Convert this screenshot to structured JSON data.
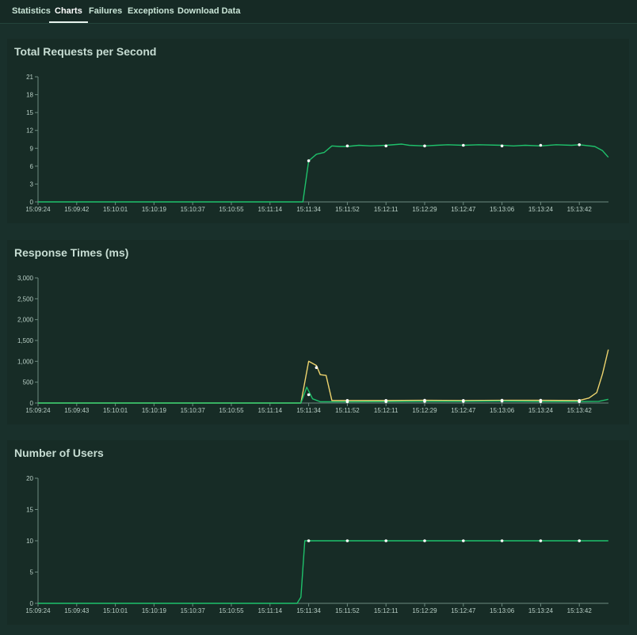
{
  "nav": {
    "tabs": [
      {
        "label": "Statistics",
        "active": false
      },
      {
        "label": "Charts",
        "active": true
      },
      {
        "label": "Failures",
        "active": false
      },
      {
        "label": "Exceptions",
        "active": false
      },
      {
        "label": "Download Data",
        "active": false
      }
    ]
  },
  "colors": {
    "background": "#19302b",
    "panel": "#172c26",
    "green_line": "#1fc16b",
    "yellow_line": "#eed46e",
    "axis": "#6d8a80"
  },
  "chart_data": [
    {
      "type": "line",
      "title": "Total Requests per Second",
      "ylim": [
        0,
        21
      ],
      "yticks": [
        "0",
        "3",
        "6",
        "9",
        "12",
        "15",
        "18",
        "21"
      ],
      "x_tick_labels": [
        "15:09:24",
        "15:09:42",
        "15:10:01",
        "15:10:19",
        "15:10:37",
        "15:10:55",
        "15:11:14",
        "15:11:34",
        "15:11:52",
        "15:12:11",
        "15:12:29",
        "15:12:47",
        "15:13:06",
        "15:13:24",
        "15:13:42"
      ],
      "grid": false,
      "series": [
        {
          "color": "#1fc16b",
          "points": [
            [
              0,
              0
            ],
            [
              6.75,
              0
            ],
            [
              6.85,
              0
            ],
            [
              7.0,
              6.9
            ],
            [
              7.2,
              8.0
            ],
            [
              7.4,
              8.3
            ],
            [
              7.6,
              9.4
            ],
            [
              7.8,
              9.3
            ],
            [
              8.0,
              9.3
            ],
            [
              8.3,
              9.5
            ],
            [
              8.6,
              9.4
            ],
            [
              9.0,
              9.5
            ],
            [
              9.4,
              9.7
            ],
            [
              9.6,
              9.5
            ],
            [
              10.0,
              9.4
            ],
            [
              10.3,
              9.5
            ],
            [
              10.6,
              9.6
            ],
            [
              11.0,
              9.5
            ],
            [
              11.4,
              9.6
            ],
            [
              12.0,
              9.5
            ],
            [
              12.3,
              9.4
            ],
            [
              12.6,
              9.5
            ],
            [
              13.0,
              9.4
            ],
            [
              13.4,
              9.6
            ],
            [
              13.8,
              9.5
            ],
            [
              14.0,
              9.6
            ],
            [
              14.4,
              9.3
            ],
            [
              14.6,
              8.6
            ],
            [
              14.75,
              7.5
            ]
          ],
          "markers": [
            [
              7.0,
              6.9
            ],
            [
              8.0,
              9.4
            ],
            [
              9.0,
              9.4
            ],
            [
              10.0,
              9.4
            ],
            [
              11.0,
              9.5
            ],
            [
              12.0,
              9.4
            ],
            [
              13.0,
              9.5
            ],
            [
              14.0,
              9.6
            ]
          ]
        }
      ]
    },
    {
      "type": "line",
      "title": "Response Times (ms)",
      "ylim": [
        0,
        3000
      ],
      "yticks": [
        "0",
        "500",
        "1,000",
        "1,500",
        "2,000",
        "2,500",
        "3,000"
      ],
      "x_tick_labels": [
        "15:09:24",
        "15:09:43",
        "15:10:01",
        "15:10:19",
        "15:10:37",
        "15:10:55",
        "15:11:14",
        "15:11:34",
        "15:11:52",
        "15:12:11",
        "15:12:29",
        "15:12:47",
        "15:13:06",
        "15:13:24",
        "15:13:42"
      ],
      "grid": false,
      "series": [
        {
          "color": "#eed46e",
          "points": [
            [
              0,
              0
            ],
            [
              6.8,
              0
            ],
            [
              7.0,
              1000
            ],
            [
              7.2,
              900
            ],
            [
              7.3,
              680
            ],
            [
              7.45,
              660
            ],
            [
              7.6,
              60
            ],
            [
              8.0,
              60
            ],
            [
              9.0,
              60
            ],
            [
              10.0,
              65
            ],
            [
              11.0,
              60
            ],
            [
              12.0,
              65
            ],
            [
              13.0,
              65
            ],
            [
              14.0,
              60
            ],
            [
              14.25,
              120
            ],
            [
              14.45,
              250
            ],
            [
              14.6,
              700
            ],
            [
              14.75,
              1280
            ]
          ],
          "markers": [
            [
              7.2,
              850
            ],
            [
              8.0,
              60
            ],
            [
              9.0,
              60
            ],
            [
              10.0,
              65
            ],
            [
              11.0,
              60
            ],
            [
              12.0,
              65
            ],
            [
              13.0,
              65
            ],
            [
              14.0,
              60
            ]
          ]
        },
        {
          "color": "#1fc16b",
          "points": [
            [
              0,
              0
            ],
            [
              6.8,
              0
            ],
            [
              6.95,
              380
            ],
            [
              7.1,
              100
            ],
            [
              7.3,
              30
            ],
            [
              8.0,
              30
            ],
            [
              9.0,
              35
            ],
            [
              10.0,
              40
            ],
            [
              11.0,
              40
            ],
            [
              12.0,
              45
            ],
            [
              13.0,
              35
            ],
            [
              14.0,
              35
            ],
            [
              14.5,
              40
            ],
            [
              14.75,
              90
            ]
          ],
          "markers": [
            [
              7.0,
              200
            ],
            [
              8.0,
              30
            ],
            [
              9.0,
              35
            ],
            [
              10.0,
              40
            ],
            [
              11.0,
              40
            ],
            [
              12.0,
              45
            ],
            [
              13.0,
              35
            ],
            [
              14.0,
              35
            ]
          ]
        }
      ]
    },
    {
      "type": "line",
      "title": "Number of Users",
      "ylim": [
        0,
        20
      ],
      "yticks": [
        "0",
        "5",
        "10",
        "15",
        "20"
      ],
      "x_tick_labels": [
        "15:09:24",
        "15:09:43",
        "15:10:01",
        "15:10:19",
        "15:10:37",
        "15:10:55",
        "15:11:14",
        "15:11:34",
        "15:11:52",
        "15:12:11",
        "15:12:29",
        "15:12:47",
        "15:13:06",
        "15:13:24",
        "15:13:42"
      ],
      "grid": false,
      "series": [
        {
          "color": "#1fc16b",
          "points": [
            [
              0,
              0
            ],
            [
              6.7,
              0
            ],
            [
              6.8,
              1
            ],
            [
              6.9,
              10
            ],
            [
              7.0,
              10
            ],
            [
              14.75,
              10
            ]
          ],
          "markers": [
            [
              7.0,
              10
            ],
            [
              8.0,
              10
            ],
            [
              9.0,
              10
            ],
            [
              10.0,
              10
            ],
            [
              11.0,
              10
            ],
            [
              12.0,
              10
            ],
            [
              13.0,
              10
            ],
            [
              14.0,
              10
            ]
          ]
        }
      ]
    }
  ]
}
